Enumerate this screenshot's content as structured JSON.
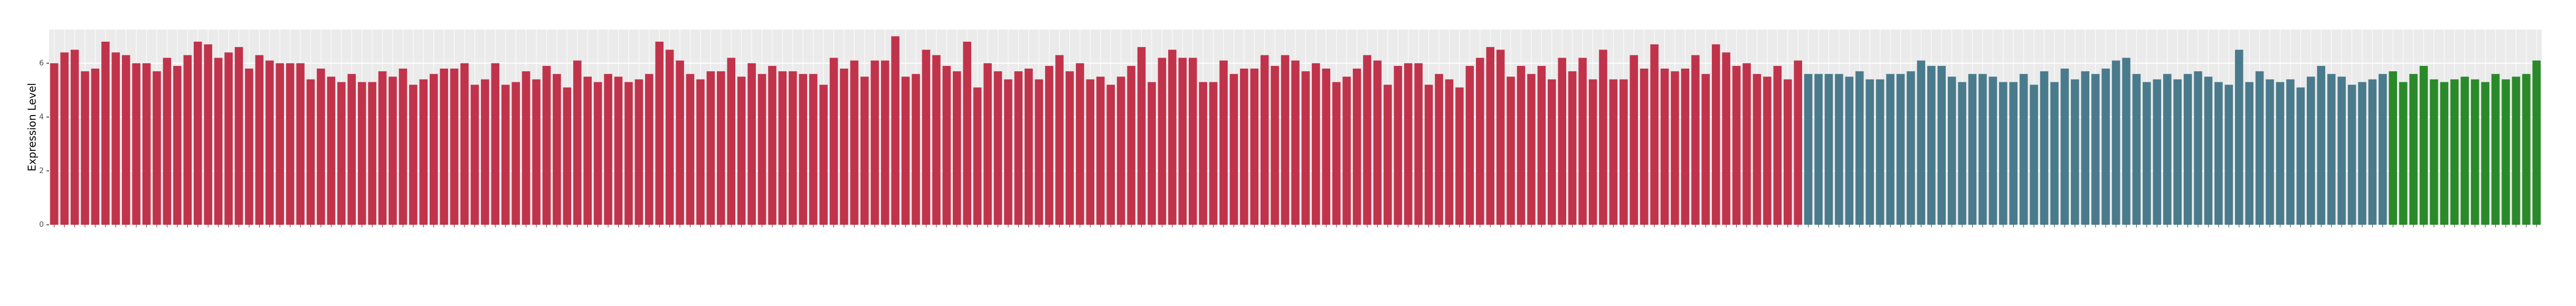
{
  "chart_data": {
    "type": "bar",
    "y_label": "Expression Level",
    "ylim": [
      0,
      7.25
    ],
    "yticks": [
      0,
      2,
      4,
      6
    ],
    "grid": true,
    "series": [
      {
        "color": "#c1334b",
        "values": [
          6.0,
          6.4,
          6.5,
          5.7,
          5.8,
          6.8,
          6.4,
          6.3,
          6.0,
          6.0,
          5.7,
          6.2,
          5.9,
          6.3,
          6.8,
          6.7,
          6.2,
          6.4,
          6.6,
          5.8,
          6.3,
          6.1,
          6.0,
          6.0,
          6.0,
          5.4,
          5.8,
          5.5,
          5.3,
          5.6,
          5.3,
          5.3,
          5.7,
          5.5,
          5.8,
          5.2,
          5.4,
          5.6,
          5.8,
          5.8,
          6.0,
          5.2,
          5.4,
          6.0,
          5.2,
          5.3,
          5.7,
          5.4,
          5.9,
          5.6,
          5.1,
          6.1,
          5.5,
          5.3,
          5.6,
          5.5,
          5.3,
          5.4,
          5.6,
          6.8,
          6.5,
          6.1,
          5.6,
          5.4,
          5.7,
          5.7,
          6.2,
          5.5,
          6.0,
          5.6,
          5.9,
          5.7,
          5.7,
          5.6,
          5.6,
          5.2,
          6.2,
          5.8,
          6.1,
          5.5,
          6.1,
          6.1,
          7.0,
          5.5,
          5.6,
          6.5,
          6.3,
          5.9,
          5.7,
          6.8,
          5.1,
          6.0,
          5.7,
          5.4,
          5.7,
          5.8,
          5.4,
          5.9,
          6.3,
          5.7,
          6.0,
          5.4,
          5.5,
          5.2,
          5.5,
          5.9,
          6.6,
          5.3,
          6.2,
          6.5,
          6.2,
          6.2,
          5.3,
          5.3,
          6.1,
          5.6,
          5.8,
          5.8,
          6.3,
          5.9,
          6.3,
          6.1,
          5.7,
          6.0,
          5.8,
          5.3,
          5.5,
          5.8,
          6.3,
          6.1,
          5.2,
          5.9,
          6.0,
          6.0,
          5.2,
          5.6,
          5.4,
          5.1,
          5.9,
          6.2,
          6.6,
          6.5,
          5.5,
          5.9,
          5.6,
          5.9,
          5.4,
          6.2,
          5.7,
          6.2,
          5.4,
          6.5,
          5.4,
          5.4,
          6.3,
          5.8,
          6.7,
          5.8,
          5.7,
          5.8,
          6.3,
          5.6,
          6.7,
          6.4,
          5.9,
          6.0,
          5.6,
          5.5,
          5.9,
          5.4,
          6.1
        ]
      },
      {
        "color": "#4a7b8d",
        "values": [
          5.6,
          5.6,
          5.6,
          5.6,
          5.5,
          5.7,
          5.4,
          5.4,
          5.6,
          5.6,
          5.7,
          6.1,
          5.9,
          5.9,
          5.5,
          5.3,
          5.6,
          5.6,
          5.5,
          5.3,
          5.3,
          5.6,
          5.2,
          5.7,
          5.3,
          5.8,
          5.4,
          5.7,
          5.6,
          5.8,
          6.1,
          6.2,
          5.6,
          5.3,
          5.4,
          5.6,
          5.4,
          5.6,
          5.7,
          5.5,
          5.3,
          5.2,
          6.5,
          5.3,
          5.7,
          5.4,
          5.3,
          5.4,
          5.1,
          5.5,
          5.9,
          5.6,
          5.5,
          5.2,
          5.3,
          5.4,
          5.6
        ]
      },
      {
        "color": "#2a8a2a",
        "values": [
          5.7,
          5.3,
          5.6,
          5.9,
          5.4,
          5.3,
          5.4,
          5.5,
          5.4,
          5.3,
          5.6,
          5.4,
          5.5,
          5.6,
          6.1
        ]
      }
    ]
  }
}
